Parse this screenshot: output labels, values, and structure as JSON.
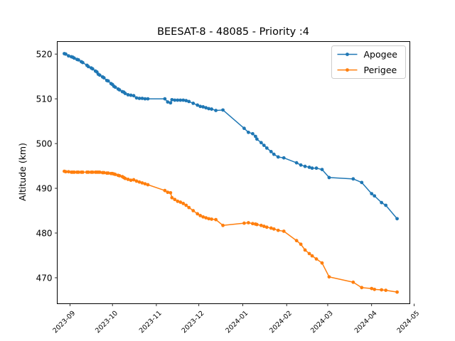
{
  "chart_data": {
    "type": "line",
    "title": "BEESAT-8 - 48085 - Priority :4",
    "xlabel": "",
    "ylabel": "Altitude (km)",
    "x_type": "date",
    "xlim": [
      "2023-08-23",
      "2024-04-28"
    ],
    "ylim": [
      464.2,
      522.8
    ],
    "x_ticks": [
      "2023-09",
      "2023-10",
      "2023-11",
      "2023-12",
      "2024-01",
      "2024-02",
      "2024-03",
      "2024-04",
      "2024-05"
    ],
    "y_ticks": [
      470,
      480,
      490,
      500,
      510,
      520
    ],
    "grid": false,
    "legend_position": "top-right",
    "series": [
      {
        "name": "Apogee",
        "color": "#1f77b4",
        "marker": "circle",
        "x": [
          "2023-08-28",
          "2023-08-29",
          "2023-08-31",
          "2023-09-02",
          "2023-09-03",
          "2023-09-04",
          "2023-09-06",
          "2023-09-07",
          "2023-09-09",
          "2023-09-10",
          "2023-09-13",
          "2023-09-14",
          "2023-09-16",
          "2023-09-17",
          "2023-09-19",
          "2023-09-20",
          "2023-09-21",
          "2023-09-22",
          "2023-09-24",
          "2023-09-25",
          "2023-09-27",
          "2023-09-28",
          "2023-09-30",
          "2023-10-01",
          "2023-10-02",
          "2023-10-03",
          "2023-10-05",
          "2023-10-06",
          "2023-10-08",
          "2023-10-09",
          "2023-10-10",
          "2023-10-12",
          "2023-10-14",
          "2023-10-16",
          "2023-10-18",
          "2023-10-20",
          "2023-10-22",
          "2023-10-24",
          "2023-10-26",
          "2023-11-07",
          "2023-11-09",
          "2023-11-11",
          "2023-11-12",
          "2023-11-14",
          "2023-11-16",
          "2023-11-18",
          "2023-11-20",
          "2023-11-22",
          "2023-11-24",
          "2023-11-27",
          "2023-11-30",
          "2023-12-02",
          "2023-12-04",
          "2023-12-06",
          "2023-12-08",
          "2023-12-10",
          "2023-12-13",
          "2023-12-18",
          "2024-01-02",
          "2024-01-05",
          "2024-01-08",
          "2024-01-10",
          "2024-01-11",
          "2024-01-14",
          "2024-01-16",
          "2024-01-18",
          "2024-01-21",
          "2024-01-23",
          "2024-01-26",
          "2024-01-30",
          "2024-02-08",
          "2024-02-11",
          "2024-02-14",
          "2024-02-17",
          "2024-02-19",
          "2024-02-22",
          "2024-02-26",
          "2024-03-02",
          "2024-03-19",
          "2024-03-25",
          "2024-04-01",
          "2024-04-03",
          "2024-04-08",
          "2024-04-11",
          "2024-04-19"
        ],
        "y": [
          520.1,
          520.0,
          519.6,
          519.4,
          519.3,
          519.1,
          518.8,
          518.7,
          518.3,
          518.1,
          517.5,
          517.2,
          516.9,
          516.7,
          516.2,
          516.0,
          515.5,
          515.3,
          514.9,
          514.7,
          514.1,
          514.0,
          513.4,
          513.2,
          512.8,
          512.6,
          512.2,
          512.0,
          511.6,
          511.5,
          511.2,
          510.9,
          510.8,
          510.7,
          510.2,
          510.1,
          510.1,
          510.0,
          510.0,
          510.0,
          509.3,
          509.1,
          509.8,
          509.7,
          509.7,
          509.7,
          509.7,
          509.6,
          509.4,
          509.0,
          508.6,
          508.3,
          508.2,
          508.0,
          507.8,
          507.7,
          507.4,
          507.5,
          503.4,
          502.5,
          502.2,
          501.6,
          501.0,
          500.2,
          499.6,
          499.0,
          498.2,
          497.6,
          497.0,
          496.8,
          495.7,
          495.2,
          494.9,
          494.7,
          494.5,
          494.5,
          494.2,
          492.4,
          492.1,
          491.3,
          488.8,
          488.3,
          486.8,
          486.2,
          483.2
        ]
      },
      {
        "name": "Perigee",
        "color": "#ff7f0e",
        "marker": "circle",
        "x": [
          "2023-08-28",
          "2023-08-29",
          "2023-08-31",
          "2023-09-02",
          "2023-09-03",
          "2023-09-04",
          "2023-09-06",
          "2023-09-07",
          "2023-09-09",
          "2023-09-10",
          "2023-09-13",
          "2023-09-14",
          "2023-09-16",
          "2023-09-17",
          "2023-09-19",
          "2023-09-20",
          "2023-09-21",
          "2023-09-22",
          "2023-09-24",
          "2023-09-25",
          "2023-09-27",
          "2023-09-28",
          "2023-09-30",
          "2023-10-01",
          "2023-10-02",
          "2023-10-03",
          "2023-10-05",
          "2023-10-06",
          "2023-10-08",
          "2023-10-09",
          "2023-10-10",
          "2023-10-12",
          "2023-10-14",
          "2023-10-16",
          "2023-10-18",
          "2023-10-20",
          "2023-10-22",
          "2023-10-24",
          "2023-10-26",
          "2023-11-07",
          "2023-11-09",
          "2023-11-11",
          "2023-11-12",
          "2023-11-14",
          "2023-11-16",
          "2023-11-18",
          "2023-11-20",
          "2023-11-22",
          "2023-11-24",
          "2023-11-27",
          "2023-11-30",
          "2023-12-02",
          "2023-12-04",
          "2023-12-06",
          "2023-12-08",
          "2023-12-10",
          "2023-12-13",
          "2023-12-18",
          "2024-01-02",
          "2024-01-05",
          "2024-01-08",
          "2024-01-10",
          "2024-01-11",
          "2024-01-14",
          "2024-01-16",
          "2024-01-18",
          "2024-01-21",
          "2024-01-23",
          "2024-01-26",
          "2024-01-30",
          "2024-02-08",
          "2024-02-11",
          "2024-02-14",
          "2024-02-17",
          "2024-02-19",
          "2024-02-22",
          "2024-02-26",
          "2024-03-02",
          "2024-03-19",
          "2024-03-25",
          "2024-04-01",
          "2024-04-03",
          "2024-04-08",
          "2024-04-11",
          "2024-04-19"
        ],
        "y": [
          493.8,
          493.7,
          493.7,
          493.6,
          493.6,
          493.6,
          493.6,
          493.6,
          493.6,
          493.6,
          493.6,
          493.6,
          493.6,
          493.6,
          493.6,
          493.6,
          493.6,
          493.6,
          493.5,
          493.5,
          493.4,
          493.4,
          493.3,
          493.3,
          493.2,
          493.1,
          492.9,
          492.8,
          492.6,
          492.4,
          492.2,
          492.0,
          491.8,
          491.9,
          491.6,
          491.4,
          491.2,
          491.0,
          490.8,
          489.5,
          489.1,
          489.0,
          487.9,
          487.5,
          487.1,
          486.9,
          486.6,
          486.2,
          485.7,
          485.0,
          484.3,
          483.9,
          483.6,
          483.4,
          483.2,
          483.1,
          483.0,
          481.7,
          482.2,
          482.3,
          482.1,
          482.0,
          481.9,
          481.7,
          481.5,
          481.3,
          481.1,
          480.9,
          480.6,
          480.4,
          478.3,
          477.5,
          476.2,
          475.4,
          474.9,
          474.2,
          473.3,
          470.2,
          469.0,
          467.8,
          467.6,
          467.4,
          467.3,
          467.2,
          466.8
        ]
      }
    ]
  }
}
